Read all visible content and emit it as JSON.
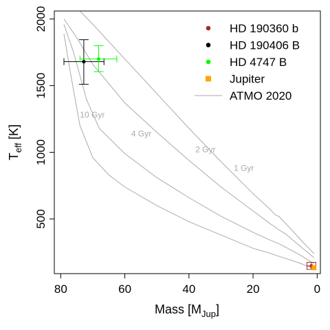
{
  "chart_data": {
    "type": "scatter",
    "xlabel": "Mass [M",
    "xlabel_sub": "Jup",
    "xlabel_end": "]",
    "ylabel": "T",
    "ylabel_sub": "eff",
    "ylabel_end": " [K]",
    "xlim": [
      82,
      -1
    ],
    "ylim": [
      90,
      2060
    ],
    "xticks": [
      80,
      60,
      40,
      20,
      0
    ],
    "yticks": [
      500,
      1000,
      1500,
      2000
    ],
    "grid": false,
    "legend_position": "top-right",
    "legend": [
      {
        "label": "HD 190360 b",
        "marker": "circle",
        "color": "#a52a2a"
      },
      {
        "label": "HD 190406 B",
        "marker": "circle",
        "color": "#000000"
      },
      {
        "label": "HD 4747 B",
        "marker": "circle",
        "color": "#00ff00"
      },
      {
        "label": "Jupiter",
        "marker": "square",
        "color": "#ffa500"
      },
      {
        "label": "ATMO 2020",
        "marker": "line",
        "color": "#aaaaaa"
      }
    ],
    "points": [
      {
        "name": "HD 190406 B",
        "x": 72.8,
        "y": 1680,
        "xerr": [
          79,
          66.5
        ],
        "yerr": [
          1510,
          1845
        ],
        "color": "#000000",
        "marker": "circle"
      },
      {
        "name": "HD 4747 B",
        "x": 68.2,
        "y": 1700,
        "xerr": [
          74,
          62.5
        ],
        "yerr": [
          1605,
          1800
        ],
        "color": "#00ff00",
        "marker": "circle"
      },
      {
        "name": "HD 190360 b",
        "x": 1.8,
        "y": 148,
        "xerr": [
          3.2,
          0.4
        ],
        "yerr": [
          122,
          175
        ],
        "color": "#a52a2a",
        "marker": "circle"
      },
      {
        "name": "Jupiter",
        "x": 1.0,
        "y": 134,
        "color": "#ffa500",
        "marker": "square"
      }
    ],
    "isochrones": [
      {
        "label": "1 Gyr",
        "label_at": [
          26,
          860
        ],
        "x": [
          74,
          70,
          60,
          50,
          40,
          30,
          20,
          15,
          13,
          12,
          10,
          8,
          5,
          3,
          1
        ],
        "y": [
          2060,
          1960,
          1700,
          1440,
          1180,
          930,
          690,
          580,
          530,
          520,
          470,
          420,
          340,
          290,
          240
        ]
      },
      {
        "label": "2 Gyr",
        "label_at": [
          38,
          1000
        ],
        "x": [
          79,
          75,
          70,
          60,
          50,
          40,
          30,
          20,
          15,
          12,
          10,
          8,
          5,
          3,
          1
        ],
        "y": [
          2000,
          1860,
          1660,
          1370,
          1150,
          940,
          740,
          560,
          470,
          420,
          390,
          350,
          290,
          250,
          210
        ]
      },
      {
        "label": "4 Gyr",
        "label_at": [
          58,
          1120
        ],
        "x": [
          79,
          76,
          72,
          68,
          60,
          50,
          40,
          30,
          20,
          15,
          12,
          10,
          8,
          5,
          3,
          1
        ],
        "y": [
          1960,
          1750,
          1400,
          1180,
          990,
          810,
          660,
          520,
          400,
          345,
          315,
          290,
          265,
          225,
          195,
          165
        ]
      },
      {
        "label": "10 Gyr",
        "label_at": [
          74,
          1260
        ],
        "x": [
          79,
          77,
          74,
          70,
          65,
          60,
          50,
          40,
          30,
          20,
          15,
          12,
          10,
          8,
          5,
          3,
          1
        ],
        "y": [
          1890,
          1600,
          1200,
          960,
          830,
          740,
          600,
          480,
          380,
          280,
          245,
          220,
          205,
          190,
          165,
          145,
          125
        ]
      }
    ]
  }
}
